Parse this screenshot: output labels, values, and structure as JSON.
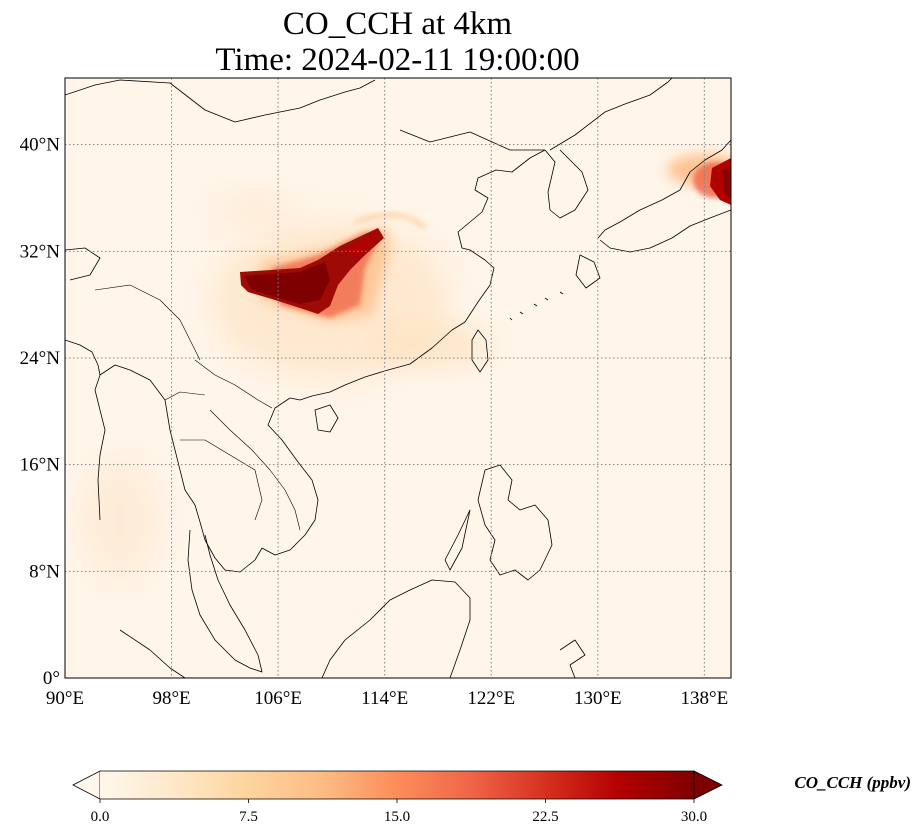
{
  "title": {
    "line1": "CO_CCH at 4km",
    "line2": "Time: 2024-02-11 19:00:00"
  },
  "map": {
    "extent": {
      "lon_min": 90,
      "lon_max": 140,
      "lat_min": 0,
      "lat_max": 45
    },
    "projection": "PlateCarree",
    "gridlines": "dotted",
    "x_ticks": [
      {
        "lon": 90,
        "label": "90°E"
      },
      {
        "lon": 98,
        "label": "98°E"
      },
      {
        "lon": 106,
        "label": "106°E"
      },
      {
        "lon": 114,
        "label": "114°E"
      },
      {
        "lon": 122,
        "label": "122°E"
      },
      {
        "lon": 130,
        "label": "130°E"
      },
      {
        "lon": 138,
        "label": "138°E"
      }
    ],
    "y_ticks": [
      {
        "lat": 0,
        "label": "0°"
      },
      {
        "lat": 8,
        "label": "8°N"
      },
      {
        "lat": 16,
        "label": "16°N"
      },
      {
        "lat": 24,
        "label": "24°N"
      },
      {
        "lat": 32,
        "label": "32°N"
      },
      {
        "lat": 40,
        "label": "40°N"
      }
    ]
  },
  "colorbar": {
    "label": "CO_CCH (ppbv)",
    "colormap": "OrRd",
    "min": 0,
    "max": 30,
    "extend": "both",
    "ticks": [
      {
        "value": 0,
        "label": "0.0"
      },
      {
        "value": 7.5,
        "label": "7.5"
      },
      {
        "value": 15,
        "label": "15.0"
      },
      {
        "value": 22.5,
        "label": "22.5"
      },
      {
        "value": 30,
        "label": "30.0"
      }
    ],
    "colors": [
      "#fff7ec",
      "#fee8c8",
      "#fdd49e",
      "#fdbb84",
      "#fc8d59",
      "#ef6548",
      "#d7301f",
      "#b30000",
      "#7f0000"
    ]
  },
  "plumes": [
    {
      "name": "central-china-plume",
      "value": 30
    },
    {
      "name": "japan-plume",
      "value": 28
    }
  ]
}
